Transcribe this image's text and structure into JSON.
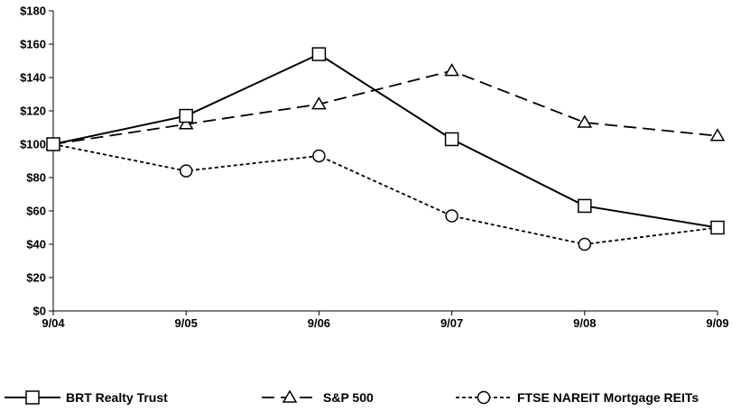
{
  "chart_data": {
    "type": "line",
    "title": "",
    "xlabel": "",
    "ylabel": "",
    "categories": [
      "9/04",
      "9/05",
      "9/06",
      "9/07",
      "9/08",
      "9/09"
    ],
    "ylim": [
      0,
      180
    ],
    "yticks": [
      0,
      20,
      40,
      60,
      80,
      100,
      120,
      140,
      160,
      180
    ],
    "ytick_labels": [
      "$0",
      "$20",
      "$40",
      "$60",
      "$80",
      "$100",
      "$120",
      "$140",
      "$160",
      "$180"
    ],
    "grid": false,
    "legend_position": "bottom",
    "series": [
      {
        "name": "BRT Realty Trust",
        "values": [
          100,
          117,
          154,
          103,
          63,
          50
        ],
        "marker": "square",
        "line_style": "solid",
        "color": "#000000"
      },
      {
        "name": "S&P 500",
        "values": [
          100,
          112,
          124,
          144,
          113,
          105
        ],
        "marker": "triangle",
        "line_style": "dashed",
        "color": "#000000"
      },
      {
        "name": "FTSE NAREIT Mortgage REITs",
        "values": [
          100,
          84,
          93,
          57,
          40,
          50
        ],
        "marker": "circle",
        "line_style": "dotted",
        "color": "#000000"
      }
    ]
  }
}
